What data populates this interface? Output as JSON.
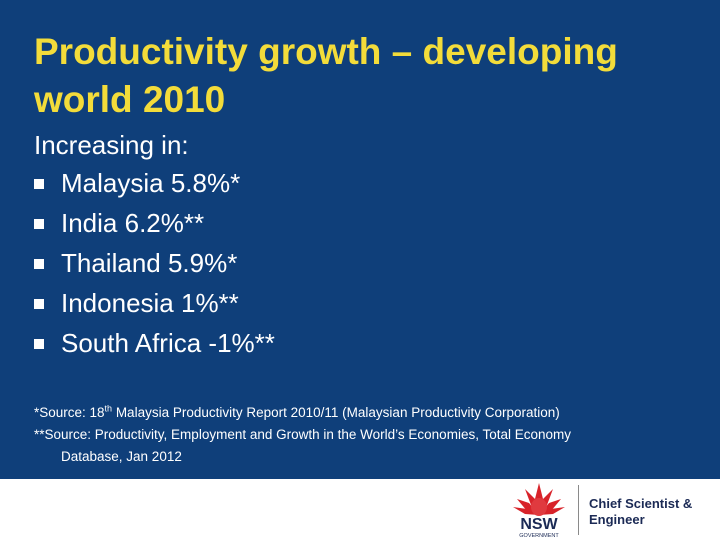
{
  "slide": {
    "title": "Productivity growth – developing world 2010",
    "intro": "Increasing in:",
    "bullets": [
      "Malaysia 5.8%*",
      "India 6.2%**",
      "Thailand 5.9%*",
      "Indonesia 1%**",
      "South Africa -1%**"
    ],
    "sources": {
      "source1_prefix": "*Source: 18",
      "source1_sup": "th",
      "source1_rest": " Malaysia Productivity Report 2010/11 (Malaysian Productivity Corporation)",
      "source2_line1": "**Source: Productivity, Employment and Growth in the World’s Economies, Total Economy",
      "source2_line2": "Database, Jan 2012"
    }
  },
  "footer": {
    "logo_text": "NSW",
    "logo_subtext": "GOVERNMENT",
    "org_line1": "Chief Scientist &",
    "org_line2": "Engineer",
    "colors": {
      "background": "#0f3f7a",
      "title": "#f3dc3a",
      "waratah": "#d8232a",
      "nsw": "#1b2a55"
    }
  }
}
